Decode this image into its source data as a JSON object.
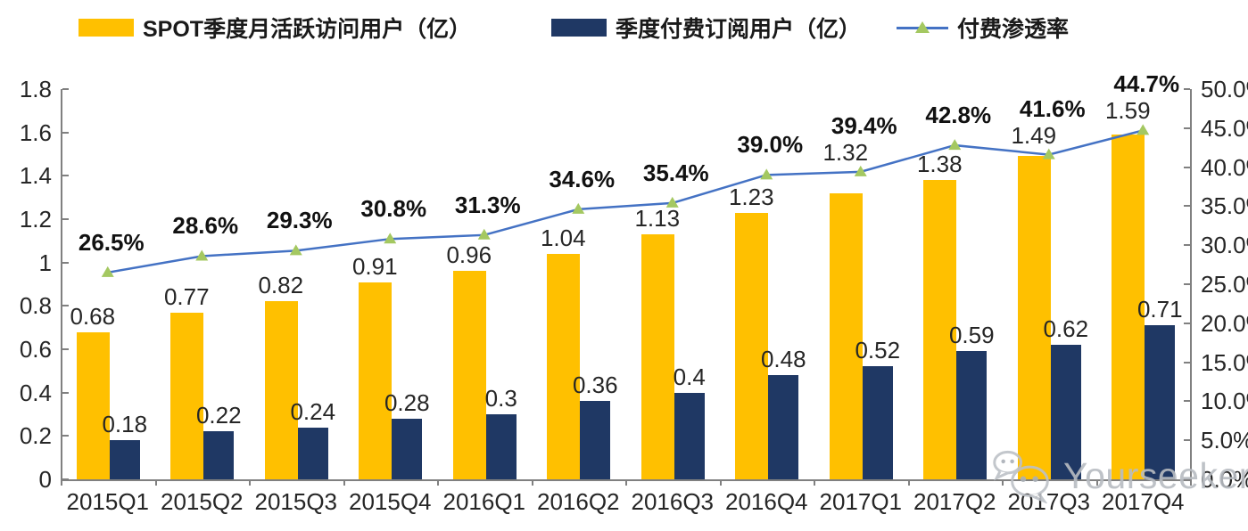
{
  "legend": [
    {
      "label": "SPOT季度月活跃访问用户（亿）",
      "color": "#FFC000",
      "type": "bar"
    },
    {
      "label": "季度付费订阅用户（亿）",
      "color": "#1F3864",
      "type": "bar"
    },
    {
      "label": "付费渗透率",
      "color": "#4472C4",
      "marker_color": "#A4C861",
      "type": "line"
    }
  ],
  "chart_data": {
    "type": "combo-bar-line",
    "title": "",
    "categories": [
      "2015Q1",
      "2015Q2",
      "2015Q3",
      "2015Q4",
      "2016Q1",
      "2016Q2",
      "2016Q3",
      "2016Q4",
      "2017Q1",
      "2017Q2",
      "2017Q3",
      "2017Q4"
    ],
    "series": [
      {
        "name": "SPOT季度月活跃访问用户（亿）",
        "type": "bar",
        "axis": "left",
        "color": "#FFC000",
        "values": [
          0.68,
          0.77,
          0.82,
          0.91,
          0.96,
          1.04,
          1.13,
          1.23,
          1.32,
          1.38,
          1.49,
          1.59
        ],
        "labels": [
          "0.68",
          "0.77",
          "0.82",
          "0.91",
          "0.96",
          "1.04",
          "1.13",
          "1.23",
          "1.32",
          "1.38",
          "1.49",
          "1.59"
        ]
      },
      {
        "name": "季度付费订阅用户（亿）",
        "type": "bar",
        "axis": "left",
        "color": "#1F3864",
        "values": [
          0.18,
          0.22,
          0.24,
          0.28,
          0.3,
          0.36,
          0.4,
          0.48,
          0.52,
          0.59,
          0.62,
          0.71
        ],
        "labels": [
          "0.18",
          "0.22",
          "0.24",
          "0.28",
          "0.3",
          "0.36",
          "0.4",
          "0.48",
          "0.52",
          "0.59",
          "0.62",
          "0.71"
        ]
      },
      {
        "name": "付费渗透率",
        "type": "line",
        "axis": "right",
        "color": "#4472C4",
        "marker": "triangle-up",
        "marker_color": "#A4C861",
        "values": [
          26.5,
          28.6,
          29.3,
          30.8,
          31.3,
          34.6,
          35.4,
          39.0,
          39.4,
          42.8,
          41.6,
          44.7
        ],
        "labels": [
          "26.5%",
          "28.6%",
          "29.3%",
          "30.8%",
          "31.3%",
          "34.6%",
          "35.4%",
          "39.0%",
          "39.4%",
          "42.8%",
          "41.6%",
          "44.7%"
        ]
      }
    ],
    "left_axis": {
      "min": 0,
      "max": 1.8,
      "ticks": [
        "0",
        "0.2",
        "0.4",
        "0.6",
        "0.8",
        "1",
        "1.2",
        "1.4",
        "1.6",
        "1.8"
      ]
    },
    "right_axis": {
      "min": 0,
      "max": 50,
      "ticks": [
        "0.0%",
        "5.0%",
        "10.0%",
        "15.0%",
        "20.0%",
        "25.0%",
        "30.0%",
        "35.0%",
        "40.0%",
        "45.0%",
        "50.0%"
      ]
    },
    "grid": false,
    "legend_position": "top"
  },
  "watermark": {
    "text": "Yourseeker",
    "icon": "wechat-icon"
  }
}
